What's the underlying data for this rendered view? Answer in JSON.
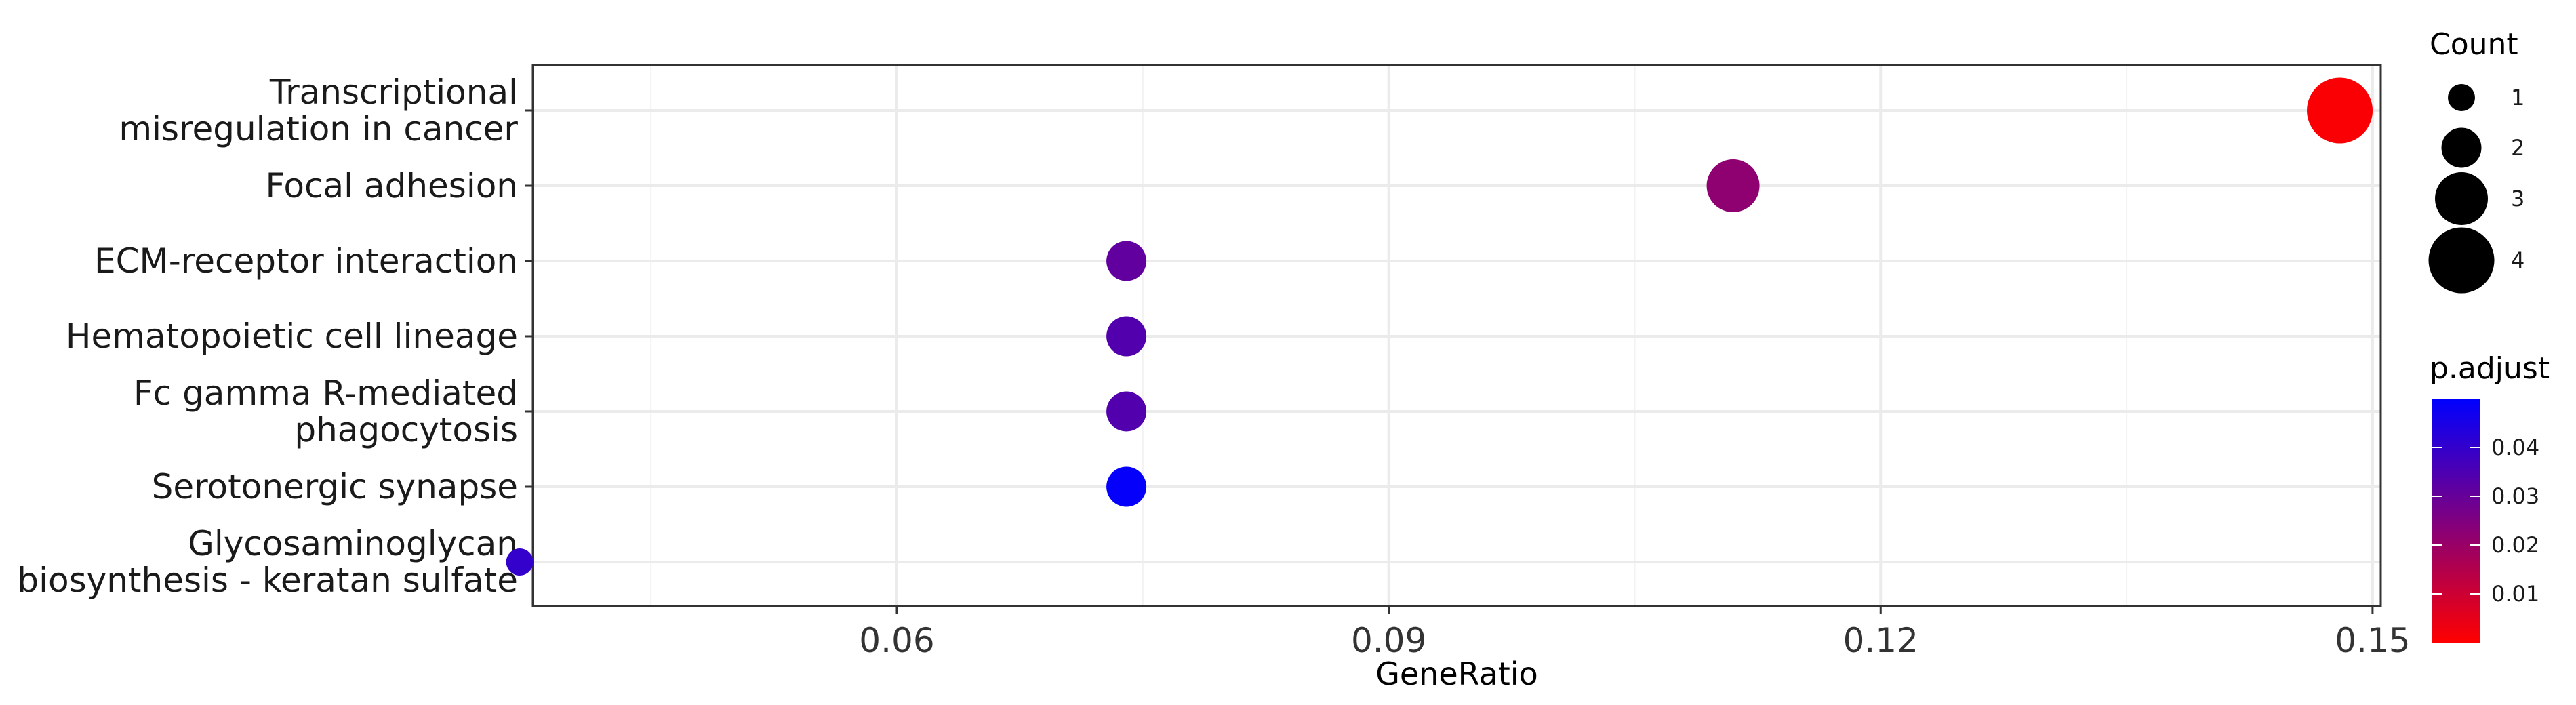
{
  "chart_data": {
    "type": "scatter",
    "xlabel": "GeneRatio",
    "xlim": [
      0.0378,
      0.1505
    ],
    "xticks": [
      "0.06",
      "0.09",
      "0.12",
      "0.15"
    ],
    "xtick_values": [
      0.06,
      0.09,
      0.12,
      0.15
    ],
    "categories": [
      "Transcriptional\nmisregulation in cancer",
      "Focal adhesion",
      "ECM-receptor interaction",
      "Hematopoietic cell lineage",
      "Fc gamma R-mediated\nphagocytosis",
      "Serotonergic synapse",
      "Glycosaminoglycan\nbiosynthesis - keratan sulfate"
    ],
    "points": [
      {
        "term": "Transcriptional misregulation in cancer",
        "gene_ratio": 0.148,
        "count": 4,
        "p_adjust": 0.001
      },
      {
        "term": "Focal adhesion",
        "gene_ratio": 0.111,
        "count": 3,
        "p_adjust": 0.022
      },
      {
        "term": "ECM-receptor interaction",
        "gene_ratio": 0.074,
        "count": 2,
        "p_adjust": 0.031
      },
      {
        "term": "Hematopoietic cell lineage",
        "gene_ratio": 0.074,
        "count": 2,
        "p_adjust": 0.034
      },
      {
        "term": "Fc gamma R-mediated phagocytosis",
        "gene_ratio": 0.074,
        "count": 2,
        "p_adjust": 0.034
      },
      {
        "term": "Serotonergic synapse",
        "gene_ratio": 0.074,
        "count": 2,
        "p_adjust": 0.049
      },
      {
        "term": "Glycosaminoglycan biosynthesis - keratan sulfate",
        "gene_ratio": 0.037,
        "count": 1,
        "p_adjust": 0.04
      }
    ],
    "grid": true,
    "size_legend": {
      "title": "Count",
      "values": [
        1,
        2,
        3,
        4
      ],
      "labels": [
        "1",
        "2",
        "3",
        "4"
      ]
    },
    "color_legend": {
      "title": "p.adjust",
      "low_color": "#ff0000",
      "high_color": "#0000ff",
      "range": [
        0.0,
        0.05
      ],
      "ticks": [
        0.01,
        0.02,
        0.03,
        0.04
      ],
      "tick_labels": [
        "0.01",
        "0.02",
        "0.03",
        "0.04"
      ]
    }
  }
}
